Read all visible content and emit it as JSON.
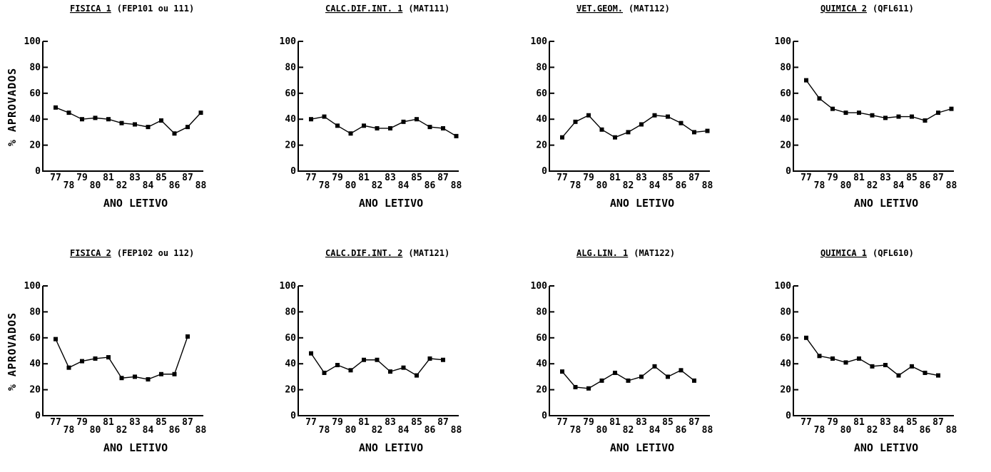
{
  "ylabel": "% APROVADOS",
  "chart_data": [
    {
      "type": "line",
      "title_main": "FISICA 1",
      "title_code": "(FEP101 ou 111)",
      "xlabel": "ANO LETIVO",
      "x": [
        "77",
        "78",
        "79",
        "80",
        "81",
        "82",
        "83",
        "84",
        "85",
        "86",
        "87",
        "88"
      ],
      "values": [
        49,
        45,
        40,
        41,
        40,
        37,
        36,
        34,
        39,
        29,
        34,
        45
      ],
      "ylim": [
        0,
        100
      ],
      "yticks": [
        "0",
        "20",
        "40",
        "60",
        "80",
        "100"
      ]
    },
    {
      "type": "line",
      "title_main": "CALC.DIF.INT. 1",
      "title_code": "(MAT111)",
      "xlabel": "ANO LETIVO",
      "x": [
        "77",
        "78",
        "79",
        "80",
        "81",
        "82",
        "83",
        "84",
        "85",
        "86",
        "87",
        "88"
      ],
      "values": [
        40,
        42,
        35,
        29,
        35,
        33,
        33,
        38,
        40,
        34,
        33,
        27
      ],
      "ylim": [
        0,
        100
      ],
      "yticks": [
        "0",
        "20",
        "40",
        "60",
        "80",
        "100"
      ]
    },
    {
      "type": "line",
      "title_main": "VET.GEOM.",
      "title_code": "(MAT112)",
      "xlabel": "ANO LETIVO",
      "x": [
        "77",
        "78",
        "79",
        "80",
        "81",
        "82",
        "83",
        "84",
        "85",
        "86",
        "87",
        "88"
      ],
      "values": [
        26,
        38,
        43,
        32,
        26,
        30,
        36,
        43,
        42,
        37,
        30,
        31
      ],
      "ylim": [
        0,
        100
      ],
      "yticks": [
        "0",
        "20",
        "40",
        "60",
        "80",
        "100"
      ]
    },
    {
      "type": "line",
      "title_main": "QUIMICA 2",
      "title_code": "(QFL611)",
      "xlabel": "ANO LETIVO",
      "x": [
        "77",
        "78",
        "79",
        "80",
        "81",
        "82",
        "83",
        "84",
        "85",
        "86",
        "87",
        "88"
      ],
      "values": [
        70,
        56,
        48,
        45,
        45,
        43,
        41,
        42,
        42,
        39,
        45,
        48
      ],
      "ylim": [
        0,
        100
      ],
      "yticks": [
        "0",
        "20",
        "40",
        "60",
        "80",
        "100"
      ]
    },
    {
      "type": "line",
      "title_main": "FISICA 2",
      "title_code": "(FEP102 ou 112)",
      "xlabel": "ANO LETIVO",
      "x": [
        "77",
        "78",
        "79",
        "80",
        "81",
        "82",
        "83",
        "84",
        "85",
        "86",
        "87",
        "88"
      ],
      "values": [
        59,
        37,
        42,
        44,
        45,
        29,
        30,
        28,
        32,
        32,
        61,
        null
      ],
      "ylim": [
        0,
        100
      ],
      "yticks": [
        "0",
        "20",
        "40",
        "60",
        "80",
        "100"
      ]
    },
    {
      "type": "line",
      "title_main": "CALC.DIF.INT. 2",
      "title_code": "(MAT121)",
      "xlabel": "ANO LETIVO",
      "x": [
        "77",
        "78",
        "79",
        "80",
        "81",
        "82",
        "83",
        "84",
        "85",
        "86",
        "87",
        "88"
      ],
      "values": [
        48,
        33,
        39,
        35,
        43,
        43,
        34,
        37,
        31,
        44,
        43,
        null
      ],
      "ylim": [
        0,
        100
      ],
      "yticks": [
        "0",
        "20",
        "40",
        "60",
        "80",
        "100"
      ]
    },
    {
      "type": "line",
      "title_main": "ALG.LIN. 1",
      "title_code": "(MAT122)",
      "xlabel": "ANO LETIVO",
      "x": [
        "77",
        "78",
        "79",
        "80",
        "81",
        "82",
        "83",
        "84",
        "85",
        "86",
        "87",
        "88"
      ],
      "values": [
        34,
        22,
        21,
        27,
        33,
        27,
        30,
        38,
        30,
        35,
        27,
        null
      ],
      "ylim": [
        0,
        100
      ],
      "yticks": [
        "0",
        "20",
        "40",
        "60",
        "80",
        "100"
      ]
    },
    {
      "type": "line",
      "title_main": "QUIMICA 1",
      "title_code": "(QFL610)",
      "xlabel": "ANO LETIVO",
      "x": [
        "77",
        "78",
        "79",
        "80",
        "81",
        "82",
        "83",
        "84",
        "85",
        "86",
        "87",
        "88"
      ],
      "values": [
        60,
        46,
        44,
        41,
        44,
        38,
        39,
        31,
        38,
        33,
        31,
        null
      ],
      "ylim": [
        0,
        100
      ],
      "yticks": [
        "0",
        "20",
        "40",
        "60",
        "80",
        "100"
      ]
    }
  ]
}
